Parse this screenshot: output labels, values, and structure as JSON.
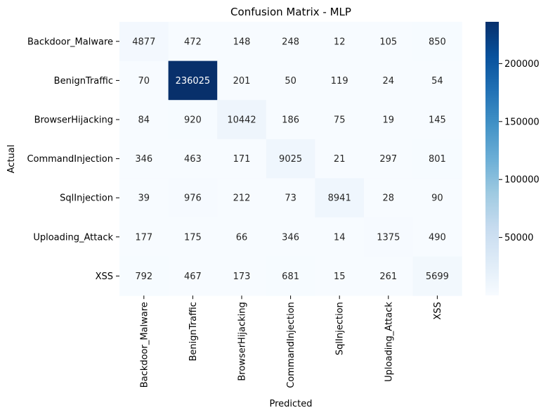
{
  "chart_data": {
    "type": "heatmap",
    "title": "Confusion Matrix - MLP",
    "xlabel": "Predicted",
    "ylabel": "Actual",
    "x_categories": [
      "Backdoor_Malware",
      "BenignTraffic",
      "BrowserHijacking",
      "CommandInjection",
      "SqlInjection",
      "Uploading_Attack",
      "XSS"
    ],
    "y_categories": [
      "Backdoor_Malware",
      "BenignTraffic",
      "BrowserHijacking",
      "CommandInjection",
      "SqlInjection",
      "Uploading_Attack",
      "XSS"
    ],
    "values": [
      [
        4877,
        472,
        148,
        248,
        12,
        105,
        850
      ],
      [
        70,
        236025,
        201,
        50,
        119,
        24,
        54
      ],
      [
        84,
        920,
        10442,
        186,
        75,
        19,
        145
      ],
      [
        346,
        463,
        171,
        9025,
        21,
        297,
        801
      ],
      [
        39,
        976,
        212,
        73,
        8941,
        28,
        90
      ],
      [
        177,
        175,
        66,
        346,
        14,
        1375,
        490
      ],
      [
        792,
        467,
        173,
        681,
        15,
        261,
        5699
      ]
    ],
    "colormap": "Blues",
    "colors": {
      "low": "#f7fbff",
      "high": "#08306b"
    },
    "colorbar": {
      "range": [
        12,
        236025
      ],
      "ticks": [
        50000,
        100000,
        150000,
        200000
      ],
      "tick_labels": [
        "50000",
        "100000",
        "150000",
        "200000"
      ]
    }
  }
}
